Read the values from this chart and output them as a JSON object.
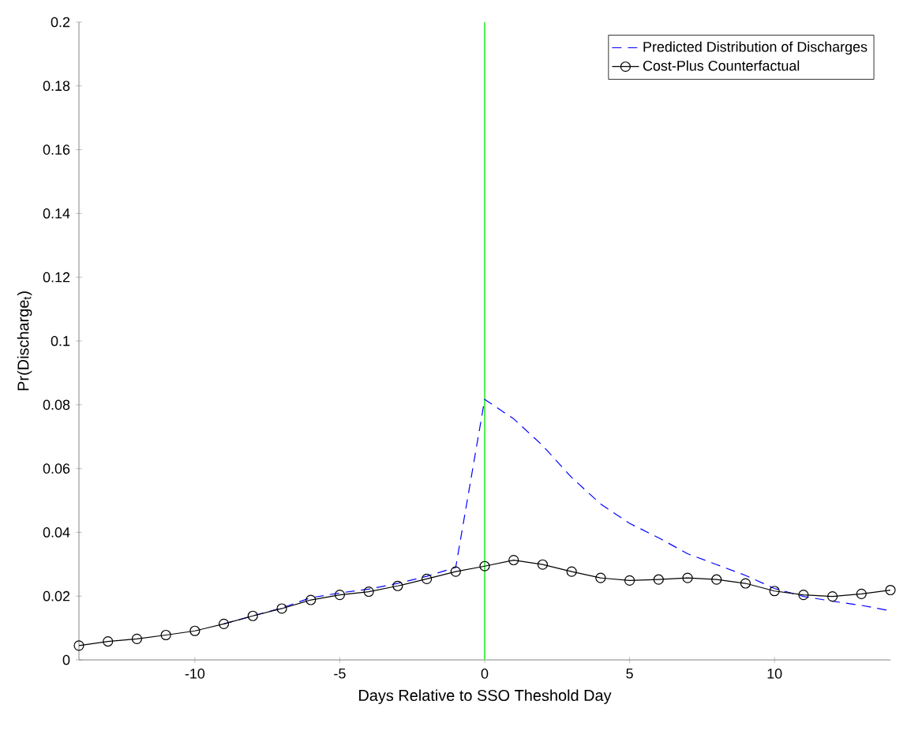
{
  "chart_data": {
    "type": "line",
    "xlabel": "Days Relative to SSO Theshold Day",
    "ylabel": "Pr(Discharge$_{t}$)",
    "x": [
      -14,
      -13,
      -12,
      -11,
      -10,
      -9,
      -8,
      -7,
      -6,
      -5,
      -4,
      -3,
      -2,
      -1,
      0,
      1,
      2,
      3,
      4,
      5,
      6,
      7,
      8,
      9,
      10,
      11,
      12,
      13,
      14
    ],
    "series": [
      {
        "name": "Predicted Distribution of Discharges",
        "color": "#0000ff",
        "line_style": "dashed",
        "marker": "none",
        "values": [
          null,
          null,
          null,
          null,
          null,
          0.0113,
          0.0138,
          0.0163,
          0.0195,
          0.021,
          0.0222,
          0.024,
          0.0262,
          0.029,
          0.0817,
          0.0756,
          0.0672,
          0.0572,
          0.0489,
          0.0428,
          0.0383,
          0.0333,
          0.0299,
          0.0265,
          0.0224,
          0.0199,
          0.0184,
          0.0171,
          0.0154
        ]
      },
      {
        "name": "Cost-Plus Counterfactual",
        "color": "#000000",
        "line_style": "solid",
        "marker": "circle",
        "values": [
          0.0045,
          0.0058,
          0.0066,
          0.0078,
          0.0091,
          0.0113,
          0.0138,
          0.0161,
          0.0188,
          0.0204,
          0.0214,
          0.0232,
          0.0254,
          0.0277,
          0.0294,
          0.0313,
          0.0299,
          0.0277,
          0.0257,
          0.0249,
          0.0252,
          0.0257,
          0.0252,
          0.024,
          0.0216,
          0.0204,
          0.0199,
          0.0207,
          0.0219
        ]
      }
    ],
    "xlim": [
      -14,
      14
    ],
    "ylim": [
      0,
      0.2
    ],
    "xticks": [
      -10,
      -5,
      0,
      5,
      10
    ],
    "yticks": [
      0,
      0.02,
      0.04,
      0.06,
      0.08,
      0.1,
      0.12,
      0.14,
      0.16,
      0.18,
      0.2
    ],
    "ref_lines": [
      {
        "axis": "x",
        "value": 0,
        "color": "#55ee55"
      }
    ],
    "legend": "top right",
    "grid": false
  }
}
